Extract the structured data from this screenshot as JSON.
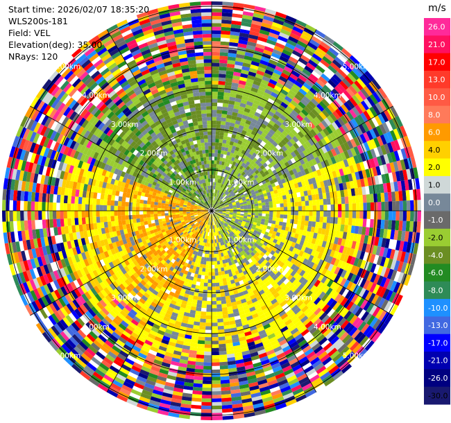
{
  "header": {
    "start_time": "Start time: 2026/02/07 18:35:20",
    "instrument": "WLS200s-181",
    "field": "Field: VEL",
    "elevation": "Elevation(deg): 35.00",
    "nrays": "NRays: 120"
  },
  "colorbar": {
    "unit": "m/s",
    "levels": [
      {
        "label": "26.0",
        "color": "#ff2a9a"
      },
      {
        "label": "21.0",
        "color": "#ff1060"
      },
      {
        "label": "17.0",
        "color": "#ff0000"
      },
      {
        "label": "13.0",
        "color": "#ff3a2a"
      },
      {
        "label": "10.0",
        "color": "#ff5a44"
      },
      {
        "label": "8.0",
        "color": "#ff7a5a"
      },
      {
        "label": "6.0",
        "color": "#ff9a00"
      },
      {
        "label": "4.0",
        "color": "#ffd000"
      },
      {
        "label": "2.0",
        "color": "#ffff00"
      },
      {
        "label": "1.0",
        "color": "#cfd8d8"
      },
      {
        "label": "0.0",
        "color": "#778899"
      },
      {
        "label": "-1.0",
        "color": "#6a6a6a"
      },
      {
        "label": "-2.0",
        "color": "#9acd32"
      },
      {
        "label": "-4.0",
        "color": "#6b8e23"
      },
      {
        "label": "-6.0",
        "color": "#228b22"
      },
      {
        "label": "-8.0",
        "color": "#2e8b57"
      },
      {
        "label": "-10.0",
        "color": "#1e90ff"
      },
      {
        "label": "-13.0",
        "color": "#4169e1"
      },
      {
        "label": "-17.0",
        "color": "#0000ff"
      },
      {
        "label": "-21.0",
        "color": "#0000b0"
      },
      {
        "label": "-26.0",
        "color": "#000080"
      },
      {
        "label": "-30.0",
        "color": "#191970"
      }
    ]
  },
  "rings": {
    "labels": [
      "1.00km",
      "2.00km",
      "3.00km",
      "4.00km",
      "5.00km"
    ]
  },
  "chart_data": {
    "type": "heatmap",
    "projection": "polar-ppi",
    "field": "VEL",
    "unit": "m/s",
    "nrays": 120,
    "elevation_deg": 35.0,
    "range_rings_km": [
      1,
      2,
      3,
      4,
      5
    ],
    "pattern": {
      "near_range_quadrant_NW_NE": "negative (-2 to -6 m/s, green) and near zero (grey)",
      "near_range_quadrant_SW": "positive (4 to 6 m/s, orange)",
      "near_range_quadrant_SE_E": "positive (1 to 2 m/s, yellow) with grey patches",
      "far_range": "noisy, all colour levels"
    }
  }
}
